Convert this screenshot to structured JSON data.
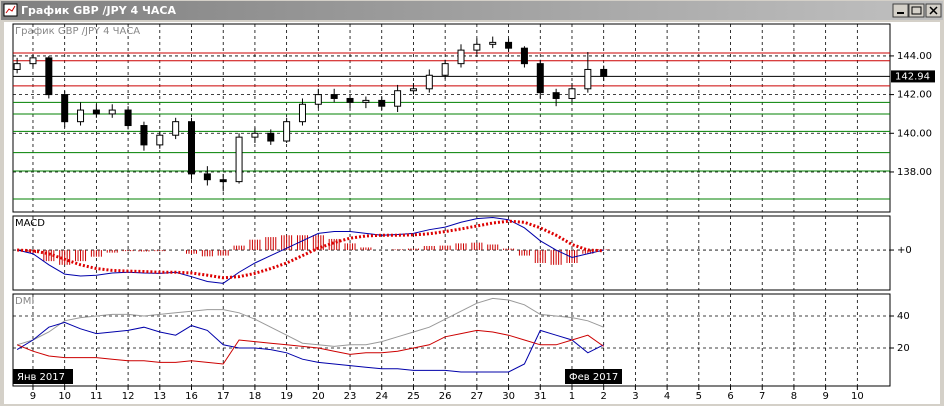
{
  "chart_data": [
    {
      "type": "candlestick",
      "title": "График GBP /JPY  4 ЧАСА",
      "period_labels": [
        "Янв 2017",
        "Фев 2017"
      ],
      "x": [
        -0.5,
        0,
        0.5,
        1,
        1.5,
        2,
        2.5,
        3,
        3.5,
        4,
        4.5,
        5,
        5.5,
        6,
        6.5,
        7,
        7.5,
        8,
        8.5,
        9,
        9.5,
        10,
        10.5,
        11,
        11.5,
        12,
        12.5,
        13,
        13.5,
        14,
        14.5,
        15,
        15.5,
        16,
        16.5,
        17,
        17.5,
        18
      ],
      "open": [
        143.3,
        143.6,
        143.9,
        142.0,
        140.6,
        141.2,
        141.0,
        141.2,
        140.4,
        139.4,
        139.9,
        140.6,
        137.9,
        137.6,
        137.5,
        139.8,
        140.0,
        139.6,
        140.6,
        141.5,
        142.0,
        141.8,
        141.6,
        141.7,
        141.4,
        142.2,
        142.3,
        143.0,
        143.6,
        144.3,
        144.6,
        144.7,
        144.4,
        143.6,
        142.1,
        141.8,
        142.3,
        143.3
      ],
      "high": [
        143.9,
        144.1,
        144.0,
        142.2,
        141.6,
        141.5,
        141.5,
        141.4,
        140.6,
        140.1,
        140.8,
        140.8,
        138.3,
        137.9,
        140.0,
        140.3,
        140.2,
        140.8,
        141.8,
        142.3,
        142.3,
        142.0,
        141.9,
        141.9,
        142.5,
        142.6,
        143.3,
        143.8,
        144.6,
        144.9,
        145.0,
        144.9,
        144.5,
        143.8,
        142.3,
        142.6,
        144.2,
        143.5
      ],
      "low": [
        143.1,
        143.4,
        141.8,
        140.3,
        140.4,
        140.8,
        140.8,
        140.2,
        139.1,
        139.2,
        139.7,
        137.6,
        137.3,
        137.0,
        137.4,
        139.5,
        139.4,
        139.5,
        140.4,
        141.3,
        141.6,
        141.3,
        141.3,
        141.2,
        141.1,
        142.0,
        142.1,
        142.8,
        143.4,
        144.1,
        144.4,
        144.2,
        143.4,
        141.8,
        141.4,
        141.6,
        142.1,
        142.7
      ],
      "close": [
        143.6,
        143.9,
        142.0,
        140.6,
        141.2,
        141.0,
        141.2,
        140.4,
        139.4,
        139.9,
        140.6,
        137.9,
        137.6,
        137.5,
        139.8,
        140.0,
        139.6,
        140.6,
        141.5,
        142.0,
        141.8,
        141.6,
        141.7,
        141.4,
        142.2,
        142.3,
        143.0,
        143.6,
        144.3,
        144.6,
        144.7,
        144.4,
        143.6,
        142.1,
        141.8,
        142.3,
        143.3,
        142.94
      ],
      "up_color": "#ffffff",
      "down_color": "#000000",
      "xlim": [
        -0.63,
        27.03
      ],
      "xticks": [
        {
          "value": 0,
          "label": "9"
        },
        {
          "value": 1,
          "label": "10"
        },
        {
          "value": 2,
          "label": "11"
        },
        {
          "value": 3,
          "label": "12"
        },
        {
          "value": 4,
          "label": "13"
        },
        {
          "value": 5,
          "label": "16"
        },
        {
          "value": 6,
          "label": "17"
        },
        {
          "value": 7,
          "label": "18"
        },
        {
          "value": 8,
          "label": "19"
        },
        {
          "value": 9,
          "label": "20"
        },
        {
          "value": 10,
          "label": "23"
        },
        {
          "value": 11,
          "label": "24"
        },
        {
          "value": 12,
          "label": "25"
        },
        {
          "value": 13,
          "label": "26"
        },
        {
          "value": 14,
          "label": "27"
        },
        {
          "value": 15,
          "label": "30"
        },
        {
          "value": 16,
          "label": "31"
        },
        {
          "value": 17,
          "label": "1"
        },
        {
          "value": 18,
          "label": "2"
        },
        {
          "value": 19,
          "label": "3"
        },
        {
          "value": 20,
          "label": "4"
        },
        {
          "value": 21,
          "label": "5"
        },
        {
          "value": 22,
          "label": "6"
        },
        {
          "value": 23,
          "label": "7"
        },
        {
          "value": 24,
          "label": "8"
        },
        {
          "value": 25,
          "label": "9"
        },
        {
          "value": 26,
          "label": "10"
        }
      ],
      "ylim": [
        135.93,
        145.65
      ],
      "yticks": [
        {
          "value": 138,
          "label": "138.00"
        },
        {
          "value": 140,
          "label": "140.00"
        },
        {
          "value": 142,
          "label": "142.00"
        },
        {
          "value": 144,
          "label": "144.00"
        }
      ],
      "levels": [
        {
          "value": 144.15,
          "color": "#cc0000"
        },
        {
          "value": 143.75,
          "color": "#cc0000"
        },
        {
          "value": 142.45,
          "color": "#cc0000"
        },
        {
          "value": 141.6,
          "color": "#008000"
        },
        {
          "value": 141.0,
          "color": "#008000"
        },
        {
          "value": 140.1,
          "color": "#008000"
        },
        {
          "value": 139.0,
          "color": "#008000"
        },
        {
          "value": 138.05,
          "color": "#008000"
        },
        {
          "value": 136.6,
          "color": "#008000"
        }
      ],
      "grid": true
    },
    {
      "type": "macd",
      "title": "MACD",
      "ylim": [
        -1.08,
        0.92
      ],
      "yticks": [
        {
          "value": 0,
          "label": "+0"
        }
      ],
      "series": [
        {
          "color": "#cc0000",
          "style": "histogram",
          "values": [
            0.0,
            -0.08,
            -0.3,
            -0.4,
            -0.3,
            -0.18,
            -0.07,
            -0.03,
            -0.04,
            -0.03,
            0.0,
            -0.1,
            -0.17,
            -0.15,
            0.12,
            0.28,
            0.35,
            0.4,
            0.4,
            0.4,
            0.3,
            0.18,
            0.07,
            0.0,
            0.02,
            0.04,
            0.11,
            0.12,
            0.18,
            0.2,
            0.15,
            0.04,
            -0.15,
            -0.35,
            -0.4,
            -0.35,
            -0.1,
            0.02
          ]
        },
        {
          "color": "#0000aa",
          "style": "line",
          "values": [
            0.0,
            -0.1,
            -0.4,
            -0.65,
            -0.7,
            -0.68,
            -0.62,
            -0.6,
            -0.62,
            -0.63,
            -0.6,
            -0.72,
            -0.85,
            -0.9,
            -0.6,
            -0.35,
            -0.15,
            0.05,
            0.25,
            0.45,
            0.5,
            0.5,
            0.45,
            0.4,
            0.42,
            0.45,
            0.55,
            0.62,
            0.75,
            0.85,
            0.88,
            0.82,
            0.6,
            0.25,
            0.0,
            -0.2,
            -0.1,
            0.0
          ]
        },
        {
          "color": "#dd0000",
          "style": "dotted",
          "values": [
            0.0,
            -0.02,
            -0.1,
            -0.25,
            -0.4,
            -0.5,
            -0.55,
            -0.57,
            -0.58,
            -0.6,
            -0.6,
            -0.62,
            -0.68,
            -0.75,
            -0.72,
            -0.63,
            -0.5,
            -0.35,
            -0.15,
            0.05,
            0.2,
            0.32,
            0.38,
            0.4,
            0.4,
            0.41,
            0.44,
            0.5,
            0.57,
            0.65,
            0.73,
            0.78,
            0.75,
            0.6,
            0.4,
            0.15,
            0.0,
            -0.02
          ]
        }
      ]
    },
    {
      "type": "line",
      "title": "DMI",
      "ylim": [
        -3.75,
        53.75
      ],
      "yticks": [
        20,
        40
      ],
      "series": [
        {
          "color": "#999999",
          "values": [
            22,
            25,
            30,
            37,
            39,
            40,
            41,
            41,
            40,
            41,
            42,
            43,
            44,
            44,
            42,
            38,
            33,
            28,
            23,
            22,
            21,
            22,
            22,
            24,
            27,
            30,
            33,
            38,
            43,
            48,
            51,
            50,
            47,
            41,
            40,
            39,
            37,
            33
          ]
        },
        {
          "color": "#0000aa",
          "values": [
            19,
            25,
            33,
            36,
            32,
            29,
            30,
            31,
            33,
            30,
            28,
            34,
            31,
            22,
            20,
            20,
            19,
            17,
            13,
            11,
            10,
            9,
            8,
            7,
            7,
            6,
            6,
            6,
            5,
            5,
            5,
            5,
            10,
            31,
            28,
            25,
            17,
            22
          ]
        },
        {
          "color": "#cc0000",
          "values": [
            22,
            18,
            15,
            14,
            14,
            14,
            13,
            12,
            12,
            11,
            11,
            12,
            11,
            10,
            25,
            24,
            23,
            22,
            21,
            20,
            18,
            16,
            17,
            17,
            18,
            20,
            22,
            27,
            29,
            31,
            30,
            28,
            25,
            22,
            22,
            25,
            28,
            21
          ]
        }
      ]
    }
  ]
}
